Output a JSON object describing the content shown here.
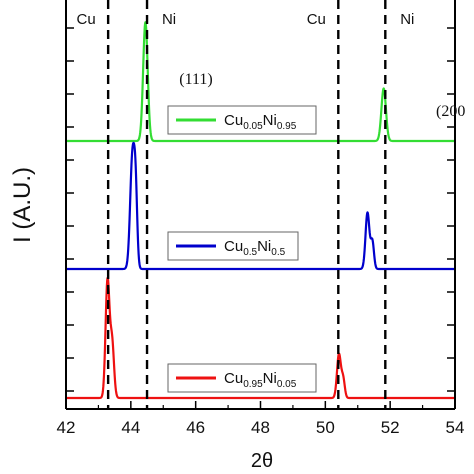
{
  "chart_data": {
    "type": "line",
    "xlabel": "2θ",
    "ylabel": "I (A.U.)",
    "xlim": [
      42,
      54
    ],
    "xticks": [
      "42",
      "44",
      "46",
      "48",
      "50",
      "52",
      "54"
    ],
    "grid": false,
    "reference_lines": [
      {
        "label": "Cu",
        "x": 43.3
      },
      {
        "label": "Ni",
        "x": 44.5
      },
      {
        "label": "Cu",
        "x": 50.4
      },
      {
        "label": "Ni",
        "x": 51.85
      }
    ],
    "annotations": [
      {
        "text": "(111)"
      },
      {
        "text": "(200"
      }
    ],
    "series": [
      {
        "name": "Cu0.05Ni0.95",
        "legend": {
          "base1": "Cu",
          "sub1": "0.05",
          "base2": "Ni",
          "sub2": "0.95"
        },
        "color": "#33dd33",
        "baseline": 2,
        "peaks": [
          {
            "x": 44.45,
            "height": 0.95,
            "width": 0.07
          },
          {
            "x": 51.8,
            "height": 0.42,
            "width": 0.07
          }
        ]
      },
      {
        "name": "Cu0.5Ni0.5",
        "legend": {
          "base1": "Cu",
          "sub1": "0.5",
          "base2": "Ni",
          "sub2": "0.5"
        },
        "color": "#0000cc",
        "baseline": 1,
        "peaks": [
          {
            "x": 44.05,
            "height": 0.9,
            "width": 0.07
          },
          {
            "x": 44.15,
            "height": 0.5,
            "width": 0.05
          },
          {
            "x": 51.3,
            "height": 0.45,
            "width": 0.06
          },
          {
            "x": 51.45,
            "height": 0.22,
            "width": 0.05
          }
        ]
      },
      {
        "name": "Cu0.95Ni0.05",
        "legend": {
          "base1": "Cu",
          "sub1": "0.95",
          "base2": "Ni",
          "sub2": "0.05"
        },
        "color": "#ee1111",
        "baseline": 0,
        "peaks": [
          {
            "x": 43.28,
            "height": 0.93,
            "width": 0.06
          },
          {
            "x": 43.42,
            "height": 0.45,
            "width": 0.06
          },
          {
            "x": 50.42,
            "height": 0.35,
            "width": 0.06
          },
          {
            "x": 50.55,
            "height": 0.15,
            "width": 0.05
          }
        ]
      }
    ]
  }
}
